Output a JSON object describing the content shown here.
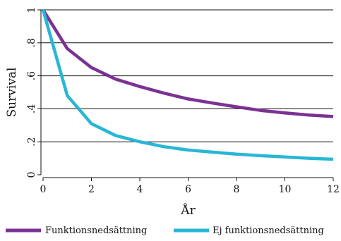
{
  "chart_data": {
    "type": "line",
    "xlabel": "År",
    "ylabel": "Survival",
    "xlim": [
      0,
      12
    ],
    "ylim": [
      0,
      1
    ],
    "x_ticks": [
      0,
      2,
      4,
      6,
      8,
      10,
      12
    ],
    "y_ticks": [
      0,
      0.2,
      0.4,
      0.6,
      0.8,
      1
    ],
    "y_tick_labels": [
      "0",
      ".2",
      ".4",
      ".6",
      ".8",
      "1"
    ],
    "grid": "horizontal",
    "legend_position": "bottom",
    "series": [
      {
        "name": "Funktionsnedsättning",
        "color": "#7b3294",
        "x": [
          0,
          1,
          2,
          3,
          4,
          5,
          6,
          7,
          8,
          9,
          10,
          11,
          12
        ],
        "y": [
          1.0,
          0.765,
          0.65,
          0.58,
          0.535,
          0.495,
          0.46,
          0.435,
          0.412,
          0.39,
          0.375,
          0.362,
          0.353
        ]
      },
      {
        "name": "Ej funktionsnedsättning",
        "color": "#29b6d6",
        "x": [
          0,
          1,
          2,
          3,
          4,
          5,
          6,
          7,
          8,
          9,
          10,
          11,
          12
        ],
        "y": [
          1.0,
          0.48,
          0.31,
          0.238,
          0.2,
          0.17,
          0.15,
          0.137,
          0.125,
          0.116,
          0.108,
          0.1,
          0.094
        ]
      }
    ]
  }
}
